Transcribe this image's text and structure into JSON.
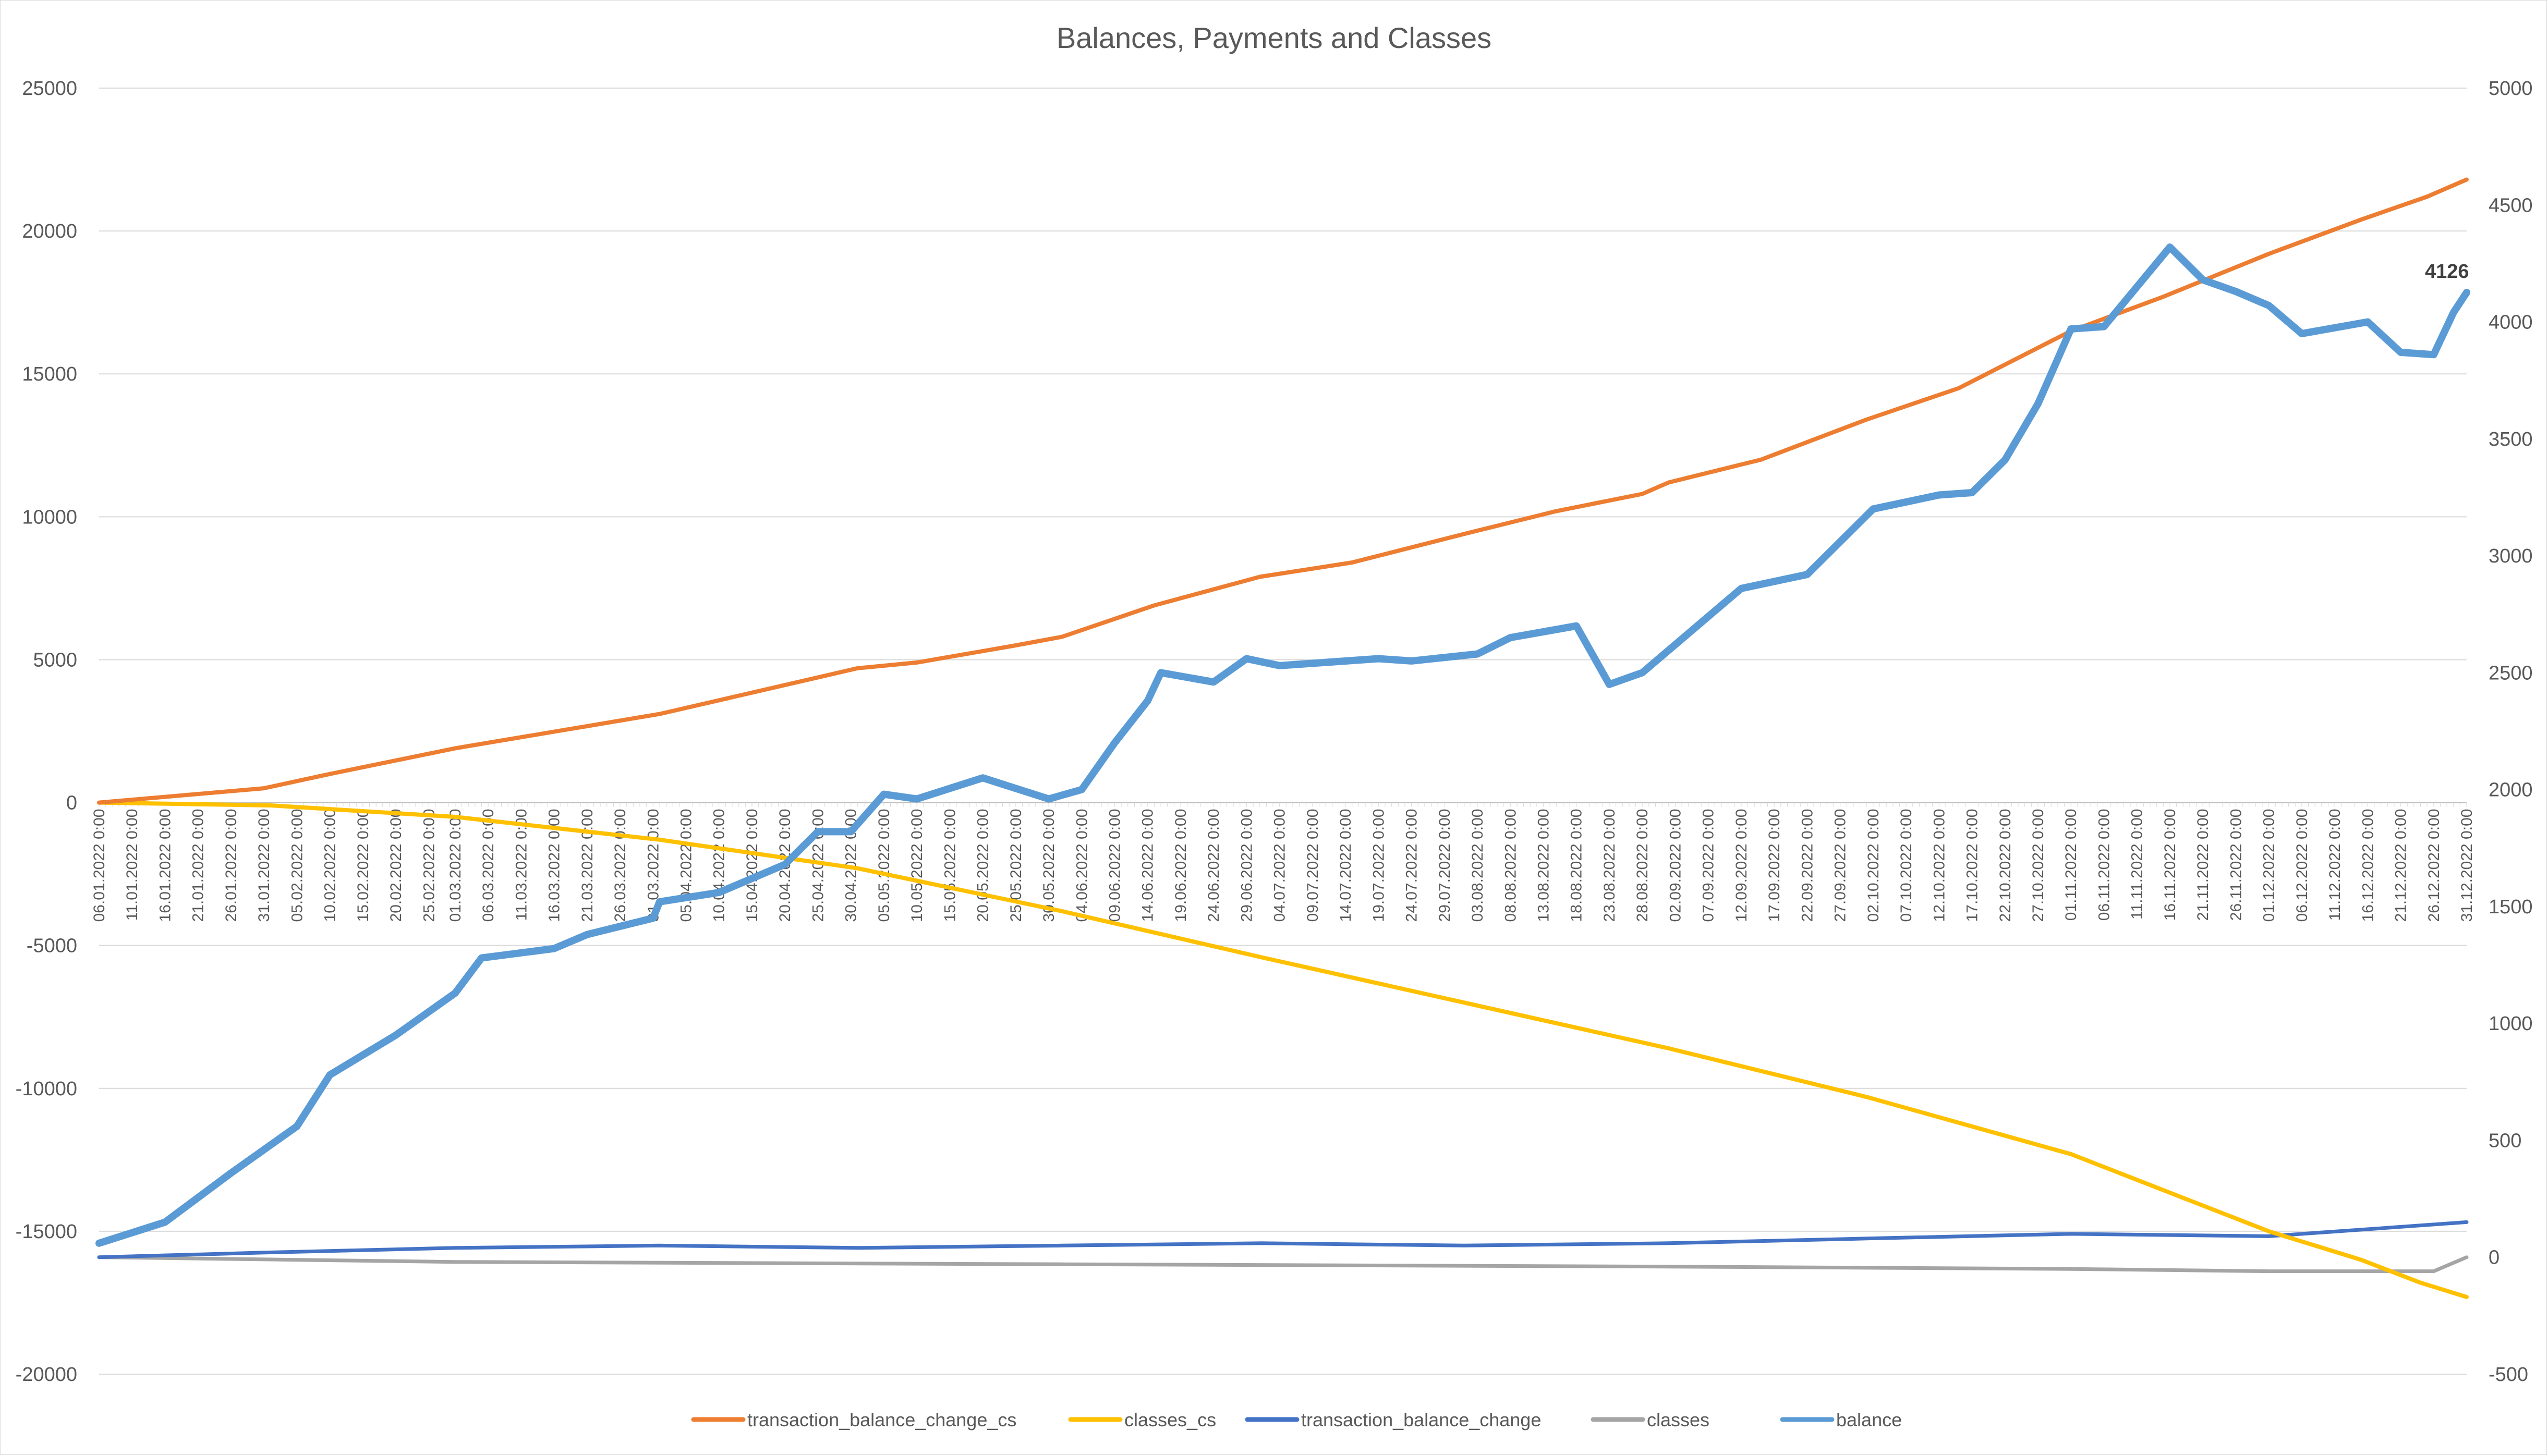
{
  "chart_data": {
    "type": "line",
    "title": "Balances, Payments and Classes",
    "xlabel": "",
    "ylabel": "",
    "x_start": "06.01.2022",
    "x_end": "31.12.2022",
    "x_tick_labels": [
      "06.01.2022 0:00",
      "11.01.2022 0:00",
      "16.01.2022 0:00",
      "21.01.2022 0:00",
      "26.01.2022 0:00",
      "31.01.2022 0:00",
      "05.02.2022 0:00",
      "10.02.2022 0:00",
      "15.02.2022 0:00",
      "20.02.2022 0:00",
      "25.02.2022 0:00",
      "01.03.2022 0:00",
      "06.03.2022 0:00",
      "11.03.2022 0:00",
      "16.03.2022 0:00",
      "21.03.2022 0:00",
      "26.03.2022 0:00",
      "31.03.2022 0:00",
      "05.04.2022 0:00",
      "10.04.2022 0:00",
      "15.04.2022 0:00",
      "20.04.2022 0:00",
      "25.04.2022 0:00",
      "30.04.2022 0:00",
      "05.05.2022 0:00",
      "10.05.2022 0:00",
      "15.05.2022 0:00",
      "20.05.2022 0:00",
      "25.05.2022 0:00",
      "30.05.2022 0:00",
      "04.06.2022 0:00",
      "09.06.2022 0:00",
      "14.06.2022 0:00",
      "19.06.2022 0:00",
      "24.06.2022 0:00",
      "29.06.2022 0:00",
      "04.07.2022 0:00",
      "09.07.2022 0:00",
      "14.07.2022 0:00",
      "19.07.2022 0:00",
      "24.07.2022 0:00",
      "29.07.2022 0:00",
      "03.08.2022 0:00",
      "08.08.2022 0:00",
      "13.08.2022 0:00",
      "18.08.2022 0:00",
      "23.08.2022 0:00",
      "28.08.2022 0:00",
      "02.09.2022 0:00",
      "07.09.2022 0:00",
      "12.09.2022 0:00",
      "17.09.2022 0:00",
      "22.09.2022 0:00",
      "27.09.2022 0:00",
      "02.10.2022 0:00",
      "07.10.2022 0:00",
      "12.10.2022 0:00",
      "17.10.2022 0:00",
      "22.10.2022 0:00",
      "27.10.2022 0:00",
      "01.11.2022 0:00",
      "06.11.2022 0:00",
      "11.11.2022 0:00",
      "16.11.2022 0:00",
      "21.11.2022 0:00",
      "26.11.2022 0:00",
      "01.12.2022 0:00",
      "06.12.2022 0:00",
      "11.12.2022 0:00",
      "16.12.2022 0:00",
      "21.12.2022 0:00",
      "26.12.2022 0:00",
      "31.12.2022 0:00"
    ],
    "y_left": {
      "ylim": [
        -20000,
        25000
      ],
      "ticks": [
        "25000",
        "20000",
        "15000",
        "10000",
        "5000",
        "0",
        "-5000",
        "-10000",
        "-15000",
        "-20000"
      ]
    },
    "y_right": {
      "ylim": [
        -500,
        5000
      ],
      "ticks": [
        "5000",
        "4500",
        "4000",
        "3500",
        "3000",
        "2500",
        "2000",
        "1500",
        "1000",
        "500",
        "0",
        "-500"
      ]
    },
    "grid": true,
    "legend": "bottom",
    "series": [
      {
        "name": "transaction_balance_change_cs",
        "axis": "left",
        "color": "#ED7D31",
        "x": [
          "06.01.2022",
          "31.01.2022",
          "10.02.2022",
          "01.03.2022",
          "01.04.2022",
          "01.05.2022",
          "10.05.2022",
          "25.05.2022",
          "01.06.2022",
          "15.06.2022",
          "01.07.2022",
          "15.07.2022",
          "01.08.2022",
          "15.08.2022",
          "28.08.2022",
          "01.09.2022",
          "15.09.2022",
          "01.10.2022",
          "15.10.2022",
          "01.11.2022",
          "15.11.2022",
          "01.12.2022",
          "15.12.2022",
          "25.12.2022",
          "31.12.2022"
        ],
        "values": [
          0,
          500,
          1000,
          1900,
          3100,
          4700,
          4900,
          5500,
          5800,
          6900,
          7900,
          8400,
          9400,
          10200,
          10800,
          11200,
          12000,
          13400,
          14500,
          16500,
          17700,
          19200,
          20400,
          21200,
          21800
        ]
      },
      {
        "name": "classes_cs",
        "axis": "left",
        "color": "#FFC000",
        "x": [
          "06.01.2022",
          "01.02.2022",
          "01.03.2022",
          "01.04.2022",
          "01.05.2022",
          "01.06.2022",
          "01.07.2022",
          "01.08.2022",
          "01.09.2022",
          "01.10.2022",
          "01.11.2022",
          "01.12.2022",
          "15.12.2022",
          "24.12.2022",
          "31.12.2022"
        ],
        "values": [
          0,
          -100,
          -500,
          -1300,
          -2300,
          -3800,
          -5400,
          -7000,
          -8600,
          -10300,
          -12300,
          -15000,
          -16000,
          -16800,
          -17300
        ]
      },
      {
        "name": "transaction_balance_change",
        "axis": "right",
        "color": "#4472C4",
        "x": [
          "06.01.2022",
          "31.01.2022",
          "01.03.2022",
          "01.04.2022",
          "01.05.2022",
          "01.06.2022",
          "01.07.2022",
          "01.08.2022",
          "01.09.2022",
          "01.10.2022",
          "01.11.2022",
          "01.12.2022",
          "31.12.2022"
        ],
        "values": [
          0,
          20,
          40,
          50,
          40,
          50,
          60,
          50,
          60,
          80,
          100,
          90,
          150
        ]
      },
      {
        "name": "classes",
        "axis": "right",
        "color": "#A5A5A5",
        "x": [
          "06.01.2022",
          "01.03.2022",
          "01.06.2022",
          "01.09.2022",
          "01.11.2022",
          "01.12.2022",
          "26.12.2022",
          "31.12.2022"
        ],
        "values": [
          0,
          -20,
          -30,
          -40,
          -50,
          -60,
          -60,
          0
        ]
      },
      {
        "name": "balance",
        "axis": "right",
        "color": "#5B9BD5",
        "x": [
          "06.01.2022",
          "16.01.2022",
          "26.01.2022",
          "05.02.2022",
          "10.02.2022",
          "20.02.2022",
          "01.03.2022",
          "05.03.2022",
          "16.03.2022",
          "21.03.2022",
          "31.03.2022",
          "01.04.2022",
          "10.04.2022",
          "20.04.2022",
          "25.04.2022",
          "30.04.2022",
          "05.05.2022",
          "10.05.2022",
          "20.05.2022",
          "30.05.2022",
          "04.06.2022",
          "09.06.2022",
          "14.06.2022",
          "16.06.2022",
          "24.06.2022",
          "29.06.2022",
          "04.07.2022",
          "19.07.2022",
          "24.07.2022",
          "03.08.2022",
          "08.08.2022",
          "18.08.2022",
          "23.08.2022",
          "28.08.2022",
          "02.09.2022",
          "12.09.2022",
          "22.09.2022",
          "02.10.2022",
          "12.10.2022",
          "17.10.2022",
          "22.10.2022",
          "27.10.2022",
          "01.11.2022",
          "06.11.2022",
          "11.11.2022",
          "16.11.2022",
          "21.11.2022",
          "26.11.2022",
          "01.12.2022",
          "06.12.2022",
          "16.12.2022",
          "21.12.2022",
          "26.12.2022",
          "29.12.2022",
          "31.12.2022"
        ],
        "values": [
          60,
          150,
          360,
          560,
          780,
          950,
          1130,
          1280,
          1320,
          1380,
          1450,
          1520,
          1560,
          1680,
          1820,
          1820,
          1980,
          1960,
          2050,
          1960,
          2000,
          2200,
          2380,
          2500,
          2460,
          2560,
          2530,
          2560,
          2550,
          2580,
          2650,
          2700,
          2450,
          2500,
          2620,
          2860,
          2920,
          3200,
          3260,
          3270,
          3410,
          3650,
          3970,
          3980,
          4150,
          4320,
          4180,
          4130,
          4070,
          3950,
          4000,
          3870,
          3860,
          4040,
          4126
        ]
      }
    ],
    "annotations": [
      {
        "series": "balance",
        "x": "31.12.2022",
        "label": "4126"
      }
    ]
  }
}
